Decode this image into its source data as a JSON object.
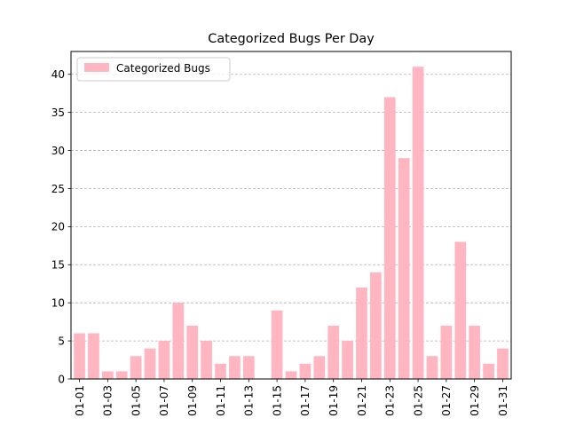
{
  "chart_data": {
    "type": "bar",
    "title": "Categorized Bugs Per Day",
    "xlabel": "",
    "ylabel": "",
    "ylim": [
      0,
      43
    ],
    "yticks": [
      0,
      5,
      10,
      15,
      20,
      25,
      30,
      35,
      40
    ],
    "grid": "y-dashed",
    "legend_position": "top-left",
    "categories": [
      "01-01",
      "01-02",
      "01-03",
      "01-04",
      "01-05",
      "01-06",
      "01-07",
      "01-08",
      "01-09",
      "01-10",
      "01-11",
      "01-12",
      "01-13",
      "01-14",
      "01-15",
      "01-16",
      "01-17",
      "01-18",
      "01-19",
      "01-20",
      "01-21",
      "01-22",
      "01-23",
      "01-24",
      "01-25",
      "01-26",
      "01-27",
      "01-28",
      "01-29",
      "01-30",
      "01-31"
    ],
    "visible_tick_labels": [
      "01-01",
      "01-03",
      "01-05",
      "01-07",
      "01-09",
      "01-11",
      "01-13",
      "01-15",
      "01-17",
      "01-19",
      "01-21",
      "01-23",
      "01-25",
      "01-27",
      "01-29",
      "01-31"
    ],
    "series": [
      {
        "name": "Categorized Bugs",
        "color": "#ffb6c1",
        "values": [
          6,
          6,
          1,
          1,
          3,
          4,
          5,
          10,
          7,
          5,
          2,
          3,
          3,
          0,
          9,
          1,
          2,
          3,
          7,
          5,
          12,
          14,
          37,
          29,
          41,
          3,
          7,
          18,
          7,
          2,
          4
        ]
      }
    ]
  }
}
